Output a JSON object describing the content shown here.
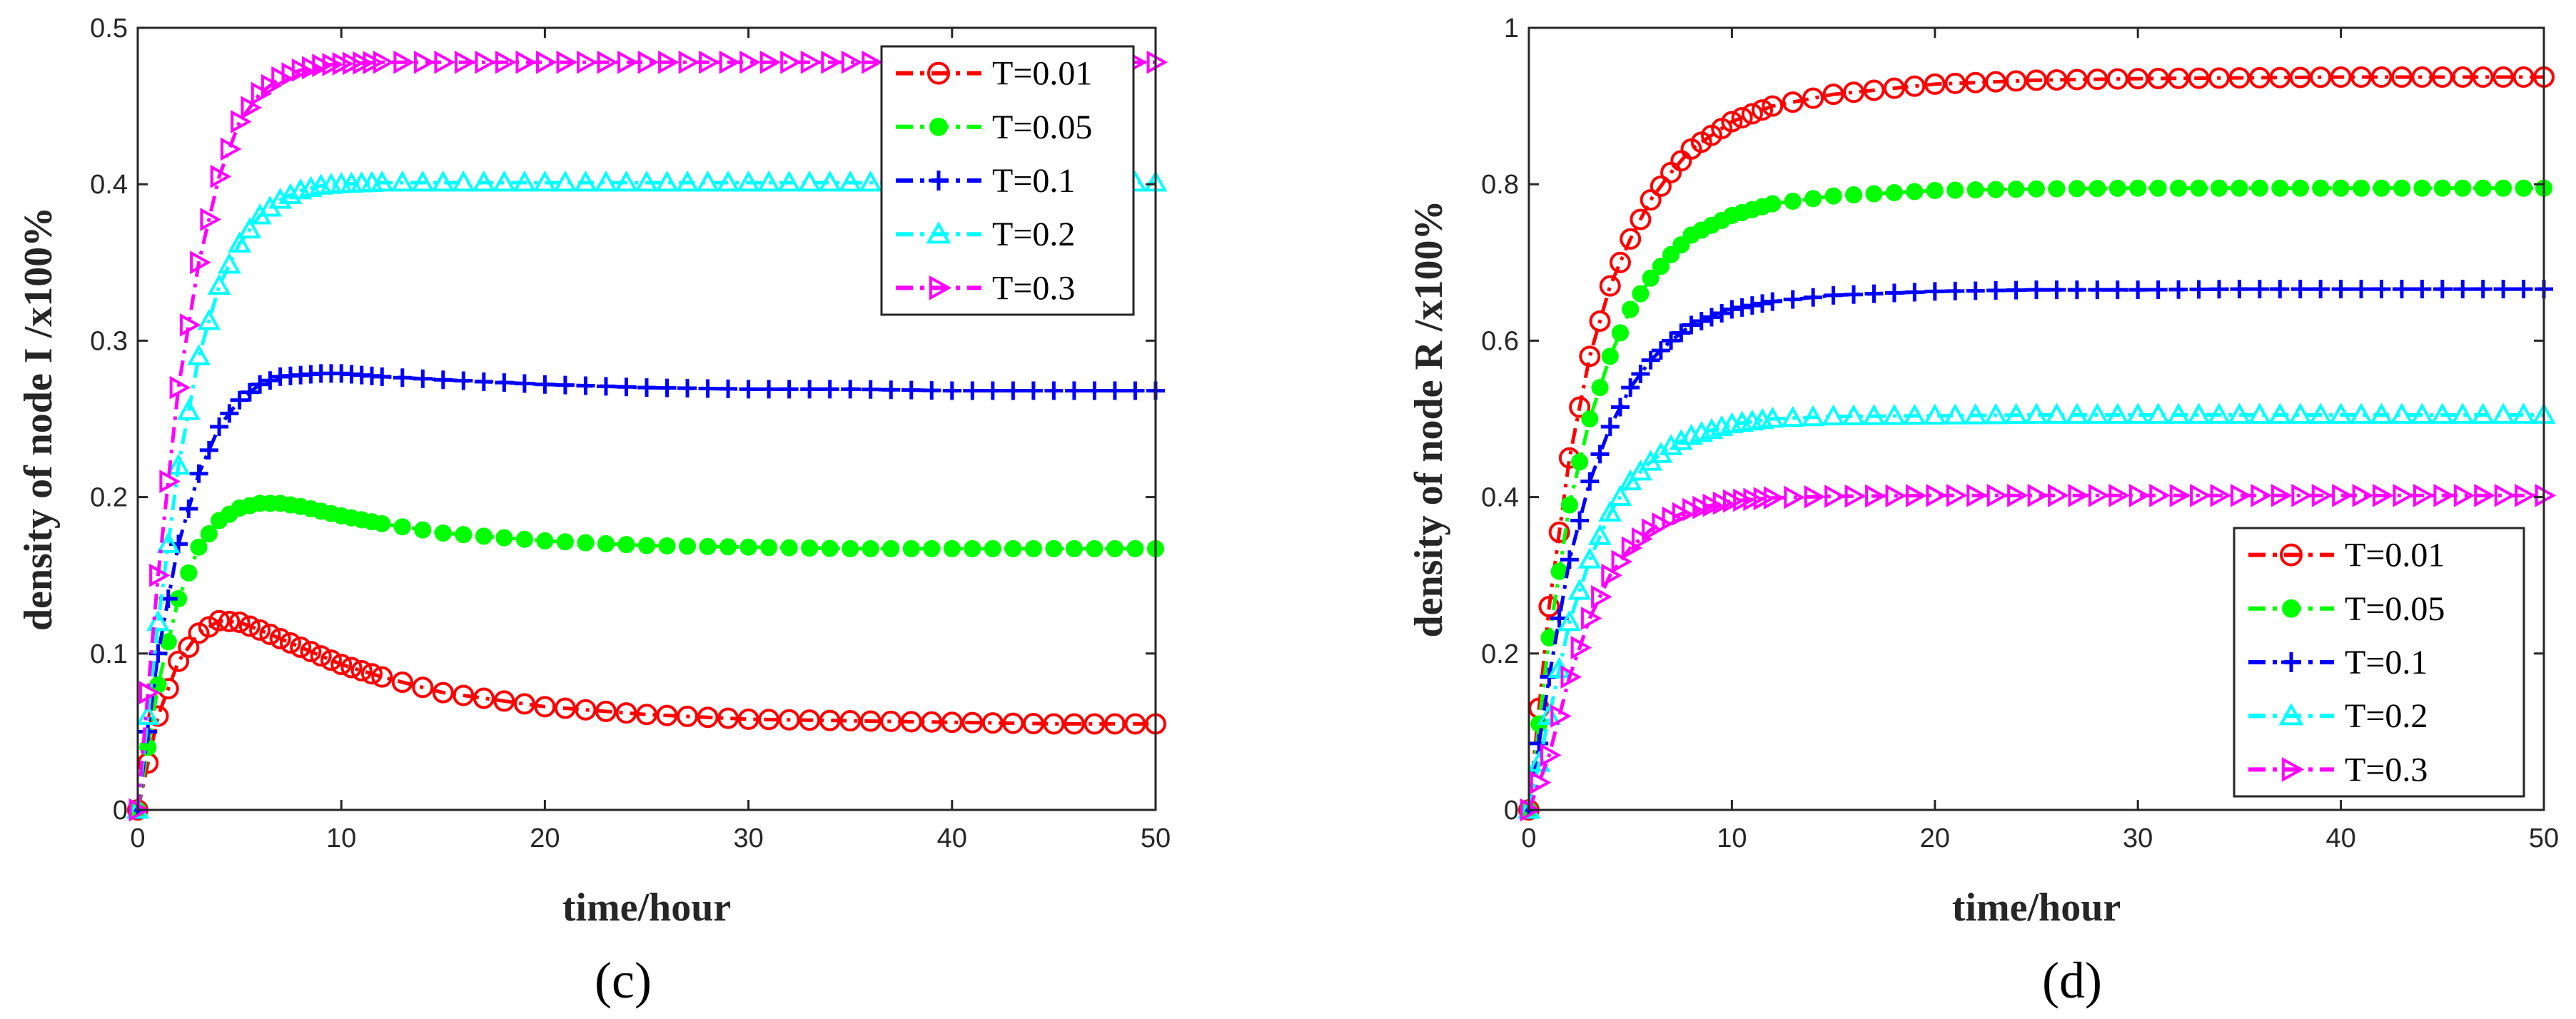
{
  "chart_data": [
    {
      "type": "line",
      "panel_label": "(c)",
      "xlabel": "time/hour",
      "ylabel": "density of node I /x100%",
      "xlim": [
        0,
        50
      ],
      "ylim": [
        0,
        0.5
      ],
      "xticks": [
        0,
        10,
        20,
        30,
        40,
        50
      ],
      "yticks": [
        0,
        0.1,
        0.2,
        0.3,
        0.4,
        0.5
      ],
      "xtick_labels": [
        "0",
        "10",
        "20",
        "30",
        "40",
        "50"
      ],
      "ytick_labels": [
        "0",
        "0.1",
        "0.2",
        "0.3",
        "0.4",
        "0.5"
      ],
      "legend_position": "top-right",
      "series": [
        {
          "name": "T=0.01",
          "color": "#ff0000",
          "marker": "circle-open",
          "x": [
            0,
            1,
            2,
            3,
            4,
            5,
            6,
            8,
            10,
            12,
            15,
            20,
            25,
            30,
            35,
            40,
            45,
            50
          ],
          "y": [
            0,
            0.06,
            0.095,
            0.113,
            0.121,
            0.12,
            0.115,
            0.104,
            0.093,
            0.085,
            0.075,
            0.066,
            0.061,
            0.058,
            0.057,
            0.056,
            0.055,
            0.055
          ]
        },
        {
          "name": "T=0.05",
          "color": "#00ff00",
          "marker": "circle-filled",
          "x": [
            0,
            1,
            2,
            3,
            4,
            5,
            6,
            7,
            8,
            10,
            12,
            15,
            20,
            25,
            30,
            35,
            40,
            45,
            50
          ],
          "y": [
            0,
            0.08,
            0.135,
            0.168,
            0.185,
            0.193,
            0.196,
            0.196,
            0.194,
            0.188,
            0.183,
            0.177,
            0.172,
            0.169,
            0.168,
            0.167,
            0.167,
            0.167,
            0.167
          ]
        },
        {
          "name": "T=0.1",
          "color": "#0000ff",
          "marker": "plus",
          "x": [
            0,
            1,
            2,
            3,
            4,
            5,
            6,
            7,
            8,
            9,
            10,
            12,
            15,
            20,
            25,
            30,
            35,
            40,
            45,
            50
          ],
          "y": [
            0,
            0.1,
            0.17,
            0.215,
            0.245,
            0.262,
            0.272,
            0.277,
            0.278,
            0.279,
            0.279,
            0.277,
            0.275,
            0.272,
            0.27,
            0.269,
            0.269,
            0.268,
            0.268,
            0.268
          ]
        },
        {
          "name": "T=0.2",
          "color": "#00ffff",
          "marker": "triangle-up",
          "x": [
            0,
            1,
            2,
            3,
            4,
            5,
            6,
            7,
            8,
            9,
            10,
            12,
            15,
            20,
            25,
            30,
            35,
            40,
            45,
            50
          ],
          "y": [
            0,
            0.12,
            0.22,
            0.29,
            0.335,
            0.362,
            0.38,
            0.39,
            0.396,
            0.399,
            0.4,
            0.401,
            0.401,
            0.401,
            0.401,
            0.401,
            0.401,
            0.401,
            0.401,
            0.401
          ]
        },
        {
          "name": "T=0.3",
          "color": "#ff00ff",
          "marker": "triangle-right",
          "x": [
            0,
            1,
            2,
            3,
            4,
            5,
            6,
            7,
            8,
            9,
            10,
            12,
            15,
            20,
            25,
            30,
            35,
            40,
            45,
            50
          ],
          "y": [
            0,
            0.15,
            0.27,
            0.35,
            0.405,
            0.44,
            0.458,
            0.468,
            0.473,
            0.476,
            0.477,
            0.478,
            0.478,
            0.478,
            0.478,
            0.478,
            0.478,
            0.478,
            0.478,
            0.478
          ]
        }
      ]
    },
    {
      "type": "line",
      "panel_label": "(d)",
      "xlabel": "time/hour",
      "ylabel": "density of node R /x100%",
      "xlim": [
        0,
        50
      ],
      "ylim": [
        0,
        1
      ],
      "xticks": [
        0,
        10,
        20,
        30,
        40,
        50
      ],
      "yticks": [
        0,
        0.2,
        0.4,
        0.6,
        0.8,
        1
      ],
      "xtick_labels": [
        "0",
        "10",
        "20",
        "30",
        "40",
        "50"
      ],
      "ytick_labels": [
        "0",
        "0.2",
        "0.4",
        "0.6",
        "0.8",
        "1"
      ],
      "legend_position": "bottom-right",
      "series": [
        {
          "name": "T=0.01",
          "color": "#ff0000",
          "marker": "circle-open",
          "x": [
            0,
            1,
            2,
            3,
            4,
            5,
            6,
            7,
            8,
            10,
            12,
            15,
            20,
            25,
            30,
            35,
            40,
            45,
            50
          ],
          "y": [
            0,
            0.26,
            0.45,
            0.58,
            0.67,
            0.73,
            0.78,
            0.815,
            0.845,
            0.88,
            0.9,
            0.915,
            0.928,
            0.933,
            0.935,
            0.936,
            0.937,
            0.937,
            0.937
          ]
        },
        {
          "name": "T=0.05",
          "color": "#00ff00",
          "marker": "circle-filled",
          "x": [
            0,
            1,
            2,
            3,
            4,
            5,
            6,
            7,
            8,
            10,
            12,
            15,
            20,
            25,
            30,
            35,
            40,
            45,
            50
          ],
          "y": [
            0,
            0.22,
            0.39,
            0.5,
            0.58,
            0.64,
            0.68,
            0.71,
            0.735,
            0.76,
            0.775,
            0.785,
            0.792,
            0.794,
            0.795,
            0.795,
            0.795,
            0.795,
            0.795
          ]
        },
        {
          "name": "T=0.1",
          "color": "#0000ff",
          "marker": "plus",
          "x": [
            0,
            1,
            2,
            3,
            4,
            5,
            6,
            7,
            8,
            10,
            12,
            15,
            20,
            25,
            30,
            35,
            40,
            45,
            50
          ],
          "y": [
            0,
            0.17,
            0.32,
            0.42,
            0.49,
            0.54,
            0.575,
            0.6,
            0.62,
            0.64,
            0.65,
            0.658,
            0.663,
            0.665,
            0.665,
            0.666,
            0.666,
            0.666,
            0.666
          ]
        },
        {
          "name": "T=0.2",
          "color": "#00ffff",
          "marker": "triangle-up",
          "x": [
            0,
            1,
            2,
            3,
            4,
            5,
            6,
            7,
            8,
            10,
            12,
            15,
            20,
            25,
            30,
            35,
            40,
            45,
            50
          ],
          "y": [
            0,
            0.12,
            0.24,
            0.32,
            0.38,
            0.42,
            0.445,
            0.465,
            0.478,
            0.493,
            0.5,
            0.503,
            0.504,
            0.505,
            0.505,
            0.505,
            0.505,
            0.505,
            0.505
          ]
        },
        {
          "name": "T=0.3",
          "color": "#ff00ff",
          "marker": "triangle-right",
          "x": [
            0,
            1,
            2,
            3,
            4,
            5,
            6,
            7,
            8,
            10,
            12,
            15,
            20,
            25,
            30,
            35,
            40,
            45,
            50
          ],
          "y": [
            0,
            0.07,
            0.17,
            0.245,
            0.3,
            0.335,
            0.358,
            0.373,
            0.384,
            0.395,
            0.399,
            0.401,
            0.402,
            0.402,
            0.402,
            0.402,
            0.402,
            0.402,
            0.402
          ]
        }
      ]
    }
  ]
}
